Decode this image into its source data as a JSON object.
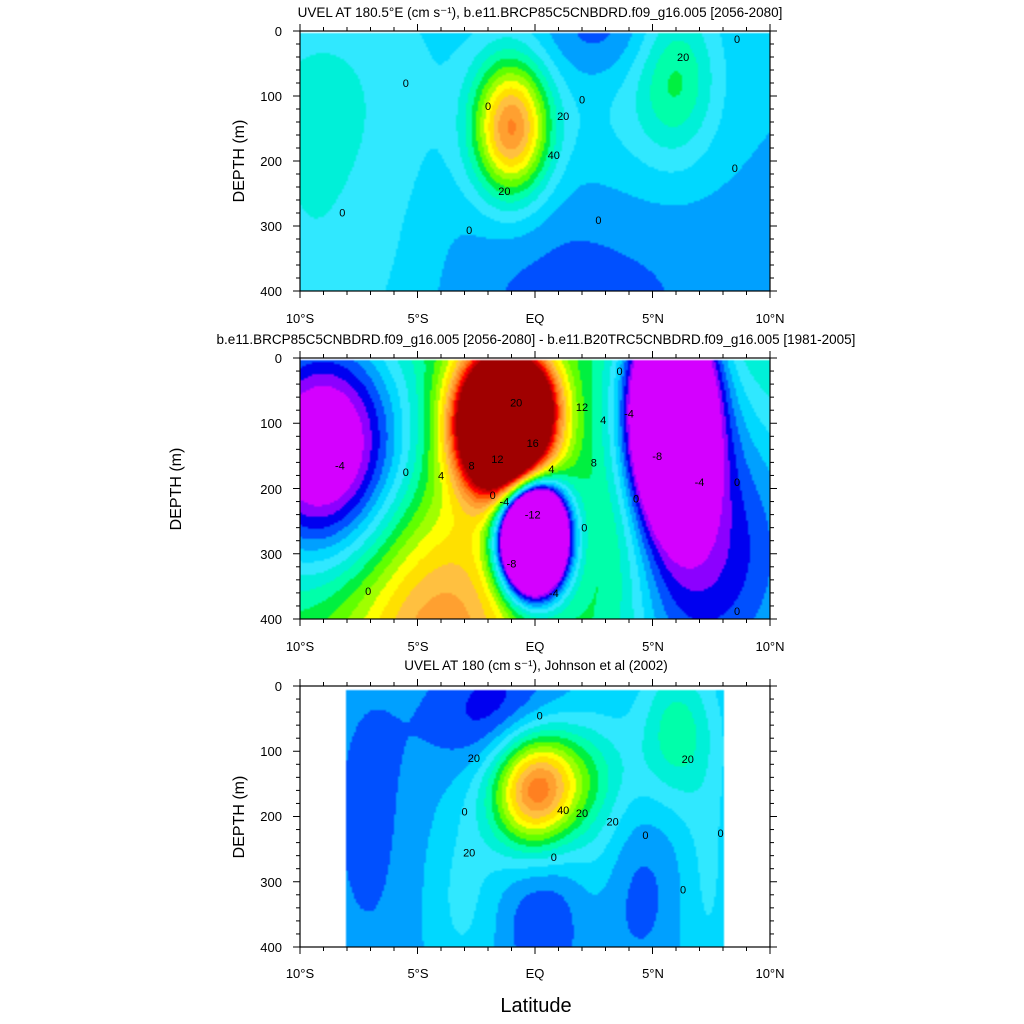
{
  "chart_data": [
    {
      "type": "contour",
      "title": "UVEL AT 180.5°E (cm s⁻¹), b.e11.BRCP85C5CNBDRD.f09_g16.005 [2056-2080]",
      "ylabel": "DEPTH (m)",
      "xlabel": "",
      "xlim": [
        -10,
        10
      ],
      "ylim": [
        0,
        400
      ],
      "y_inverted": true,
      "x_ticks": [
        "10°S",
        "5°S",
        "EQ",
        "5°N",
        "10°N"
      ],
      "y_ticks": [
        "0",
        "100",
        "200",
        "300",
        "400"
      ],
      "data_extent": {
        "x": [
          -10,
          10
        ],
        "y": [
          0,
          400
        ]
      },
      "fill_level": 2,
      "features": [
        {
          "x": -1,
          "y": 150,
          "sx": 1.15,
          "sy": 75,
          "a": 11
        },
        {
          "x": 6,
          "y": 70,
          "sx": 1.2,
          "sy": 85,
          "a": 3.5
        },
        {
          "x": 3.0,
          "y": 0,
          "sx": 2.0,
          "sy": 60,
          "a": -2.3
        },
        {
          "x": -9,
          "y": 110,
          "sx": 3.8,
          "sy": 170,
          "a": 2.2
        },
        {
          "x": -9,
          "y": 400,
          "sx": 3.8,
          "sy": 120,
          "a": 1.3
        },
        {
          "x": 1.5,
          "y": 400,
          "sx": 5.0,
          "sy": 140,
          "a": -1.5
        },
        {
          "x": 4,
          "y": 80,
          "sx": 2.5,
          "sy": 140,
          "a": 1.4
        }
      ],
      "contour_labels": [
        {
          "t": "0",
          "x": -5.5,
          "y": 80
        },
        {
          "t": "0",
          "x": -2.0,
          "y": 115
        },
        {
          "t": "20",
          "x": -1.3,
          "y": 245
        },
        {
          "t": "20",
          "x": 1.2,
          "y": 130
        },
        {
          "t": "40",
          "x": 0.8,
          "y": 190
        },
        {
          "t": "0",
          "x": 2.0,
          "y": 105
        },
        {
          "t": "20",
          "x": 6.3,
          "y": 40
        },
        {
          "t": "0",
          "x": 8.6,
          "y": 12
        },
        {
          "t": "0",
          "x": 8.5,
          "y": 210
        },
        {
          "t": "0",
          "x": 2.7,
          "y": 290
        },
        {
          "t": "0",
          "x": -2.8,
          "y": 305
        },
        {
          "t": "0",
          "x": -8.2,
          "y": 278
        }
      ]
    },
    {
      "type": "contour",
      "title": "b.e11.BRCP85C5CNBDRD.f09_g16.005 [2056-2080] - b.e11.B20TRC5CNBDRD.f09_g16.005 [1981-2005]",
      "ylabel": "DEPTH (m)",
      "xlabel": "",
      "xlim": [
        -10,
        10
      ],
      "ylim": [
        0,
        400
      ],
      "y_inverted": true,
      "x_ticks": [
        "10°S",
        "5°S",
        "EQ",
        "5°N",
        "10°N"
      ],
      "y_ticks": [
        "0",
        "100",
        "200",
        "300",
        "400"
      ],
      "data_extent": {
        "x": [
          -10,
          10
        ],
        "y": [
          0,
          400
        ]
      },
      "fill_level": 6,
      "features": [
        {
          "x": -1.3,
          "y": 100,
          "sx": 1.3,
          "sy": 70,
          "a": 18
        },
        {
          "x": -0.2,
          "y": 60,
          "sx": 0.8,
          "sy": 35,
          "a": 2
        },
        {
          "x": -0.1,
          "y": 275,
          "sx": 0.9,
          "sy": 55,
          "a": -19
        },
        {
          "x": 5.8,
          "y": 80,
          "sx": 1.2,
          "sy": 110,
          "a": -11
        },
        {
          "x": -9,
          "y": 140,
          "sx": 2.5,
          "sy": 130,
          "a": -6
        },
        {
          "x": 7,
          "y": 300,
          "sx": 4,
          "sy": 200,
          "a": -4
        },
        {
          "x": -4,
          "y": 420,
          "sx": 3,
          "sy": 150,
          "a": 3
        },
        {
          "x": 3.5,
          "y": 280,
          "sx": 1.5,
          "sy": 140,
          "a": 2
        }
      ],
      "contour_labels": [
        {
          "t": "-4",
          "x": -8.3,
          "y": 165
        },
        {
          "t": "0",
          "x": -5.5,
          "y": 175
        },
        {
          "t": "4",
          "x": -4.0,
          "y": 180
        },
        {
          "t": "8",
          "x": -2.7,
          "y": 165
        },
        {
          "t": "12",
          "x": -1.6,
          "y": 155
        },
        {
          "t": "16",
          "x": -0.1,
          "y": 130
        },
        {
          "t": "20",
          "x": -0.8,
          "y": 68
        },
        {
          "t": "12",
          "x": 2.0,
          "y": 75
        },
        {
          "t": "8",
          "x": 2.5,
          "y": 160
        },
        {
          "t": "4",
          "x": 2.9,
          "y": 95
        },
        {
          "t": "4",
          "x": 0.7,
          "y": 170
        },
        {
          "t": "0",
          "x": -1.8,
          "y": 210
        },
        {
          "t": "-4",
          "x": -1.3,
          "y": 220
        },
        {
          "t": "-12",
          "x": -0.1,
          "y": 240
        },
        {
          "t": "-8",
          "x": -1.0,
          "y": 315
        },
        {
          "t": "-4",
          "x": 0.8,
          "y": 360
        },
        {
          "t": "0",
          "x": 2.1,
          "y": 260
        },
        {
          "t": "0",
          "x": -7.1,
          "y": 357
        },
        {
          "t": "0",
          "x": 3.6,
          "y": 20
        },
        {
          "t": "-4",
          "x": 4.0,
          "y": 85
        },
        {
          "t": "-8",
          "x": 5.2,
          "y": 150
        },
        {
          "t": "-4",
          "x": 7.0,
          "y": 190
        },
        {
          "t": "0",
          "x": 4.3,
          "y": 215
        },
        {
          "t": "0",
          "x": 8.6,
          "y": 190
        },
        {
          "t": "0",
          "x": 8.6,
          "y": 388
        }
      ]
    },
    {
      "type": "contour",
      "title": "UVEL AT 180 (cm s⁻¹), Johnson et al (2002)",
      "ylabel": "DEPTH (m)",
      "xlabel": "Latitude",
      "xlim": [
        -10,
        10
      ],
      "ylim": [
        0,
        400
      ],
      "y_inverted": true,
      "x_ticks": [
        "10°S",
        "5°S",
        "EQ",
        "5°N",
        "10°N"
      ],
      "y_ticks": [
        "0",
        "100",
        "200",
        "300",
        "400"
      ],
      "data_extent": {
        "x": [
          -8,
          8
        ],
        "y": [
          5,
          400
        ]
      },
      "fill_level": 2,
      "features": [
        {
          "x": 0,
          "y": 165,
          "sx": 1.3,
          "sy": 65,
          "a": 10
        },
        {
          "x": 1.0,
          "y": 130,
          "sx": 2.0,
          "sy": 55,
          "a": 3
        },
        {
          "x": 6,
          "y": 70,
          "sx": 1.1,
          "sy": 75,
          "a": 3.5
        },
        {
          "x": -1.5,
          "y": 50,
          "sx": 1.8,
          "sy": 70,
          "a": -3
        },
        {
          "x": 0.3,
          "y": 350,
          "sx": 1.5,
          "sy": 90,
          "a": -2
        },
        {
          "x": 4.2,
          "y": 320,
          "sx": 1.3,
          "sy": 90,
          "a": -1.5
        },
        {
          "x": -7,
          "y": 200,
          "sx": 2,
          "sy": 250,
          "a": -1.2
        },
        {
          "x": -3,
          "y": 320,
          "sx": 1.3,
          "sy": 110,
          "a": 1.5
        },
        {
          "x": 2.7,
          "y": 240,
          "sx": 1.0,
          "sy": 120,
          "a": 1.5
        },
        {
          "x": 7.3,
          "y": 280,
          "sx": 0.8,
          "sy": 150,
          "a": 1.2
        }
      ],
      "contour_labels": [
        {
          "t": "0",
          "x": 0.2,
          "y": 45
        },
        {
          "t": "20",
          "x": -2.6,
          "y": 110
        },
        {
          "t": "0",
          "x": -3.0,
          "y": 192
        },
        {
          "t": "20",
          "x": -2.8,
          "y": 255
        },
        {
          "t": "40",
          "x": 1.2,
          "y": 190
        },
        {
          "t": "20",
          "x": 2.0,
          "y": 195
        },
        {
          "t": "20",
          "x": 3.3,
          "y": 208
        },
        {
          "t": "0",
          "x": 0.8,
          "y": 262
        },
        {
          "t": "0",
          "x": 4.7,
          "y": 228
        },
        {
          "t": "20",
          "x": 6.5,
          "y": 112
        },
        {
          "t": "0",
          "x": 7.9,
          "y": 225
        },
        {
          "t": "0",
          "x": 6.3,
          "y": 312
        }
      ]
    }
  ],
  "colorscale": {
    "levels": [
      -20,
      -16,
      -12,
      -8,
      -4,
      0,
      4,
      8,
      12,
      16,
      20,
      24,
      28,
      32,
      36,
      40,
      44
    ],
    "colors": [
      "#d400ff",
      "#8c00ff",
      "#0000f0",
      "#0050ff",
      "#00a0ff",
      "#00d8ff",
      "#30e8ff",
      "#00f0d8",
      "#00ffaa",
      "#00f040",
      "#60ff00",
      "#a0ff00",
      "#ffff00",
      "#ffe000",
      "#ffc040",
      "#ffa030",
      "#ff8020",
      "#ff5000",
      "#ff0000",
      "#d00000",
      "#a00000"
    ]
  }
}
